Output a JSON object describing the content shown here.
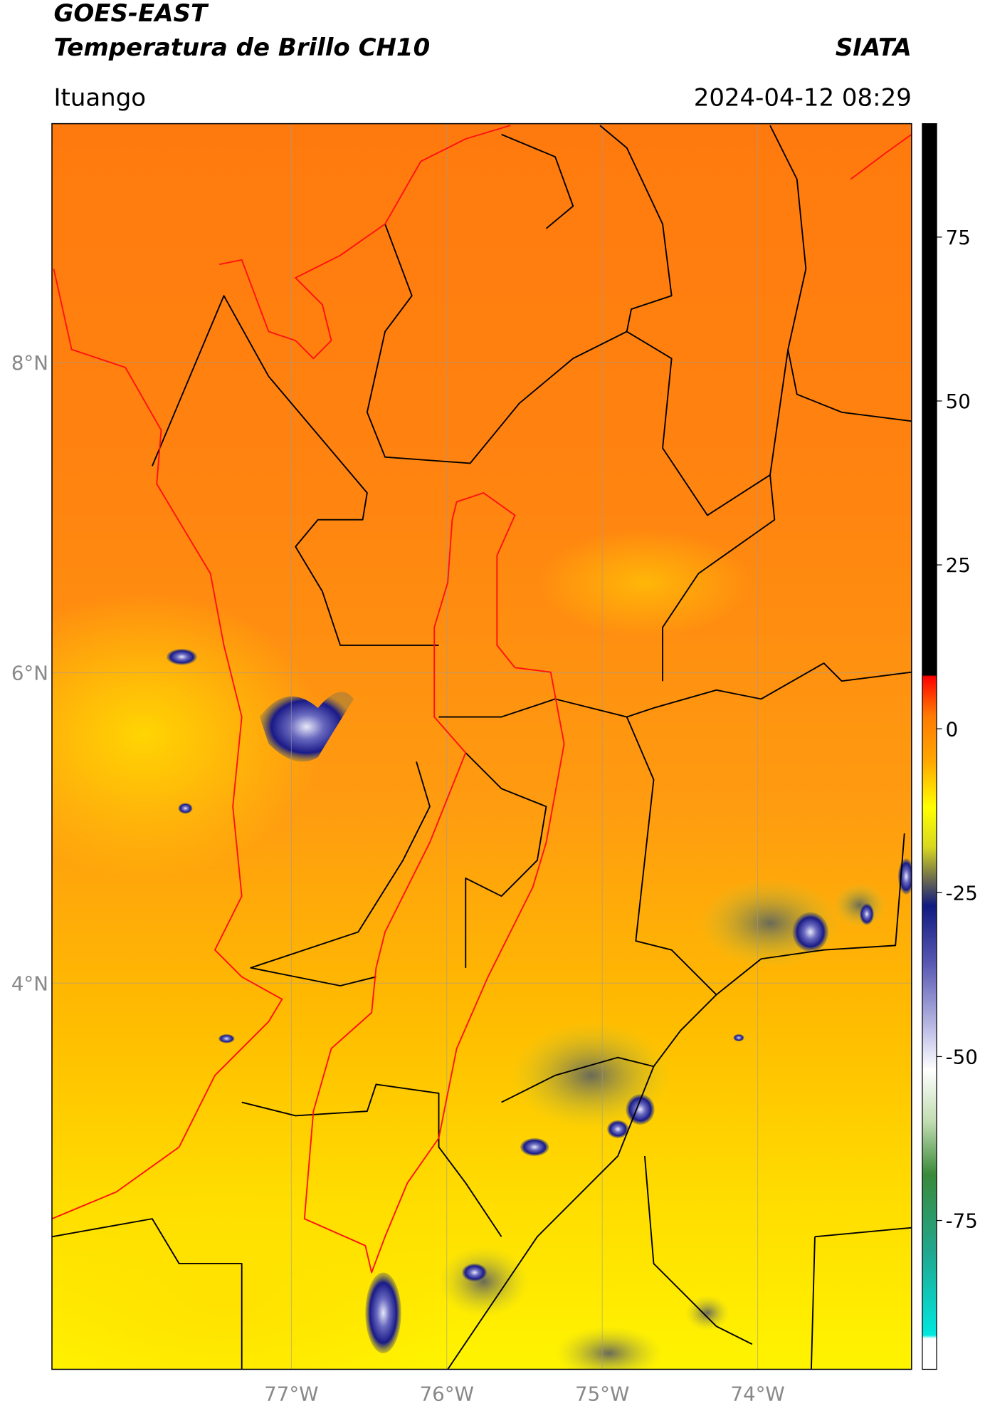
{
  "header": {
    "title": "GOES-EAST",
    "subtitle": "Temperatura de Brillo CH10",
    "source": "SIATA",
    "location": "Ituango",
    "datetime": "2024-04-12 08:29"
  },
  "map": {
    "xlim": [
      -78.54,
      -73.01
    ],
    "ylim": [
      1.51,
      9.54
    ],
    "xticks": [
      {
        "value": -77,
        "label": "77°W"
      },
      {
        "value": -76,
        "label": "76°W"
      },
      {
        "value": -75,
        "label": "75°W"
      },
      {
        "value": -74,
        "label": "74°W"
      }
    ],
    "yticks": [
      {
        "value": 8,
        "label": "8°N"
      },
      {
        "value": 6,
        "label": "6°N"
      },
      {
        "value": 4,
        "label": "4°N"
      }
    ],
    "grid": true
  },
  "colorbar": {
    "ylim": [
      -97.7,
      92.3
    ],
    "yticks": [
      75,
      50,
      25,
      0,
      -25,
      -50,
      -75
    ],
    "stops": [
      {
        "value": 92.3,
        "color": "#000000"
      },
      {
        "value": 8.2,
        "color": "#000000"
      },
      {
        "value": 8,
        "color": "#ff0000"
      },
      {
        "value": 5,
        "color": "#ff4000"
      },
      {
        "value": 2,
        "color": "#ff7a00"
      },
      {
        "value": -5,
        "color": "#ffa800"
      },
      {
        "value": -12,
        "color": "#ffff00"
      },
      {
        "value": -18,
        "color": "#d8d820"
      },
      {
        "value": -23,
        "color": "#6a6a50"
      },
      {
        "value": -27,
        "color": "#101a80"
      },
      {
        "value": -36,
        "color": "#5a5ab4"
      },
      {
        "value": -46,
        "color": "#c0c0e8"
      },
      {
        "value": -52,
        "color": "#ffffff"
      },
      {
        "value": -60,
        "color": "#c0dcb0"
      },
      {
        "value": -68,
        "color": "#3a8a3a"
      },
      {
        "value": -80,
        "color": "#20a890"
      },
      {
        "value": -92.5,
        "color": "#00e8e0"
      },
      {
        "value": -93,
        "color": "#ffffff"
      },
      {
        "value": -97.7,
        "color": "#ffffff"
      }
    ]
  }
}
